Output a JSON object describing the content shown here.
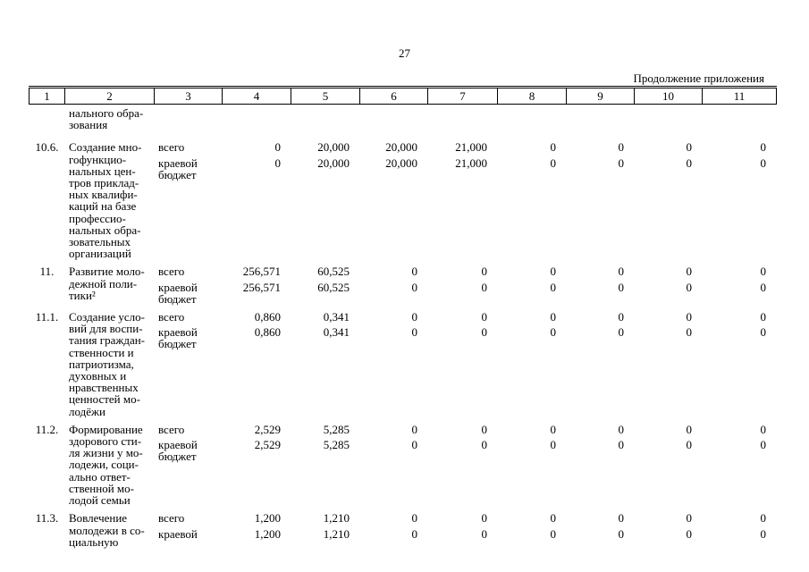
{
  "page": {
    "number": "27",
    "continuation_label": "Продолжение приложения"
  },
  "table": {
    "columns": [
      "1",
      "2",
      "3",
      "4",
      "5",
      "6",
      "7",
      "8",
      "9",
      "10",
      "11"
    ],
    "carryover_text": "нального обра-\nзования",
    "rows": [
      {
        "index": "10.6.",
        "title": "Создание мно-\nгофункцио-\nнальных цен-\nтров приклад-\nных квалифи-\nкаций на базе\nпрофессио-\nнальных обра-\nзовательных\nорганизаций",
        "budget_lines": [
          {
            "label": "всего",
            "values": [
              "0",
              "20,000",
              "20,000",
              "21,000",
              "0",
              "0",
              "0",
              "0"
            ]
          },
          {
            "label": "краевой\nбюджет",
            "values": [
              "0",
              "20,000",
              "20,000",
              "21,000",
              "0",
              "0",
              "0",
              "0"
            ]
          }
        ]
      },
      {
        "index": "11.",
        "title": "Развитие моло-\nдежной поли-\nтики²",
        "budget_lines": [
          {
            "label": "всего",
            "values": [
              "256,571",
              "60,525",
              "0",
              "0",
              "0",
              "0",
              "0",
              "0"
            ]
          },
          {
            "label": "краевой\nбюджет",
            "values": [
              "256,571",
              "60,525",
              "0",
              "0",
              "0",
              "0",
              "0",
              "0"
            ]
          }
        ]
      },
      {
        "index": "11.1.",
        "title": "Создание усло-\nвий для воспи-\nтания граждан-\nственности и\nпатриотизма,\nдуховных и\nнравственных\nценностей мо-\nлодёжи",
        "budget_lines": [
          {
            "label": "всего",
            "values": [
              "0,860",
              "0,341",
              "0",
              "0",
              "0",
              "0",
              "0",
              "0"
            ]
          },
          {
            "label": "краевой\nбюджет",
            "values": [
              "0,860",
              "0,341",
              "0",
              "0",
              "0",
              "0",
              "0",
              "0"
            ]
          }
        ]
      },
      {
        "index": "11.2.",
        "title": "Формирование\nздорового сти-\nля жизни у мо-\nлодежи, соци-\nально ответ-\nственной мо-\nлодой семьи",
        "budget_lines": [
          {
            "label": "всего",
            "values": [
              "2,529",
              "5,285",
              "0",
              "0",
              "0",
              "0",
              "0",
              "0"
            ]
          },
          {
            "label": "краевой\nбюджет",
            "values": [
              "2,529",
              "5,285",
              "0",
              "0",
              "0",
              "0",
              "0",
              "0"
            ]
          }
        ]
      },
      {
        "index": "11.3.",
        "title": "Вовлечение\nмолодежи в со-\nциальную",
        "budget_lines": [
          {
            "label": "всего",
            "values": [
              "1,200",
              "1,210",
              "0",
              "0",
              "0",
              "0",
              "0",
              "0"
            ]
          },
          {
            "label": "краевой",
            "values": [
              "1,200",
              "1,210",
              "0",
              "0",
              "0",
              "0",
              "0",
              "0"
            ]
          }
        ]
      }
    ]
  }
}
